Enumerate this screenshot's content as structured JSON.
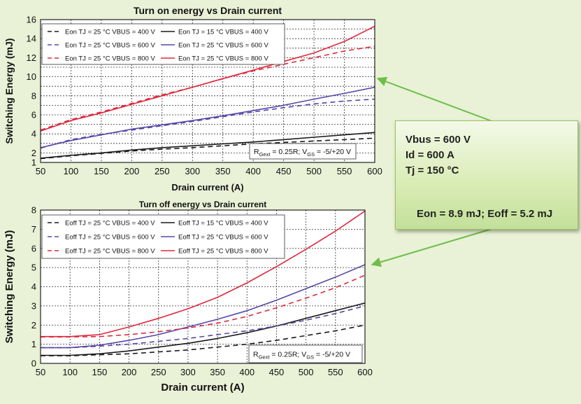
{
  "colors": {
    "page_bg": "#e9f1d6",
    "plot_bg": "#ffffff",
    "black": "#1a1a1a",
    "purple": "#5548a8",
    "red": "#e0283c",
    "arrow": "#6cbf48"
  },
  "chart_data": [
    {
      "type": "line",
      "title": "Turn on energy vs Drain current",
      "xlabel": "Drain current (A)",
      "ylabel": "Switching Energy (mJ)",
      "xlim": [
        50,
        600
      ],
      "ylim": [
        1,
        16
      ],
      "xticks": [
        50,
        100,
        150,
        200,
        250,
        300,
        350,
        400,
        450,
        500,
        550,
        600
      ],
      "yticks": [
        1,
        2,
        3,
        4,
        5,
        6,
        7,
        8,
        9,
        10,
        11,
        12,
        13,
        14,
        15,
        16
      ],
      "ytick_labels": [
        "1",
        "2",
        "4",
        "6",
        "8",
        "10",
        "12",
        "14",
        "16"
      ],
      "ytick_label_values": [
        1,
        2,
        4,
        6,
        8,
        10,
        12,
        14,
        16
      ],
      "grid": true,
      "legend_position": "top-left",
      "annotation": {
        "pre": "R",
        "sub1": "Gext",
        "mid": " = 0.25R; V",
        "sub2": "GS",
        "post": " = -5/+20 V"
      },
      "x": [
        50,
        100,
        150,
        200,
        250,
        300,
        350,
        400,
        450,
        500,
        550,
        600
      ],
      "series": [
        {
          "name": "Eon TJ = 25 °C VBUS = 400 V",
          "color": "black",
          "dash": true,
          "values": [
            1.4,
            1.7,
            1.95,
            2.2,
            2.4,
            2.55,
            2.75,
            2.95,
            3.1,
            3.25,
            3.4,
            3.55
          ]
        },
        {
          "name": "Eon TJ = 15 °C VBUS = 400 V",
          "color": "black",
          "dash": false,
          "values": [
            1.45,
            1.75,
            2.0,
            2.3,
            2.55,
            2.75,
            2.95,
            3.15,
            3.4,
            3.65,
            3.9,
            4.15
          ]
        },
        {
          "name": "Eon TJ = 25 °C VBUS = 600 V",
          "color": "purple",
          "dash": true,
          "values": [
            2.5,
            3.4,
            3.95,
            4.4,
            4.85,
            5.3,
            5.8,
            6.3,
            6.75,
            7.15,
            7.45,
            7.65
          ]
        },
        {
          "name": "Eon TJ = 25 °C VBUS = 600 V",
          "color": "purple",
          "dash": false,
          "values": [
            2.55,
            3.3,
            3.9,
            4.5,
            4.95,
            5.4,
            5.9,
            6.45,
            7.0,
            7.65,
            8.25,
            8.9
          ]
        },
        {
          "name": "Eon TJ = 25 °C VBUS = 800 V",
          "color": "red",
          "dash": true,
          "values": [
            4.4,
            5.5,
            6.3,
            7.2,
            8.1,
            8.9,
            9.8,
            10.6,
            11.3,
            12.0,
            12.7,
            13.2
          ]
        },
        {
          "name": "Eon TJ = 25 °C VBUS = 800 V",
          "color": "red",
          "dash": false,
          "values": [
            4.3,
            5.4,
            6.2,
            7.1,
            8.0,
            8.9,
            9.8,
            10.7,
            11.6,
            12.5,
            13.7,
            15.3
          ]
        }
      ]
    },
    {
      "type": "line",
      "title": "Turn off energy vs Drain current",
      "xlabel": "Drain current (A)",
      "ylabel": "Switching Energy (mJ)",
      "xlim": [
        50,
        600
      ],
      "ylim": [
        0,
        8
      ],
      "xticks": [
        50,
        100,
        150,
        200,
        250,
        300,
        350,
        400,
        450,
        500,
        550,
        600
      ],
      "yticks": [
        0,
        1,
        2,
        3,
        4,
        5,
        6,
        7,
        8
      ],
      "ytick_labels": [
        "0",
        "1",
        "2",
        "3",
        "4",
        "5",
        "6",
        "7",
        "8"
      ],
      "ytick_label_values": [
        0,
        1,
        2,
        3,
        4,
        5,
        6,
        7,
        8
      ],
      "grid": true,
      "legend_position": "top-left",
      "annotation": {
        "pre": "R",
        "sub1": "Gext",
        "mid": " = 0.25R; V",
        "sub2": "GS",
        "post": " = -5/+20 V"
      },
      "x": [
        50,
        100,
        150,
        200,
        250,
        300,
        350,
        400,
        450,
        500,
        550,
        600
      ],
      "series": [
        {
          "name": "Eoff TJ = 25 °C VBUS = 400 V",
          "color": "black",
          "dash": true,
          "values": [
            0.4,
            0.4,
            0.45,
            0.5,
            0.6,
            0.7,
            0.85,
            1.0,
            1.2,
            1.45,
            1.7,
            2.0
          ]
        },
        {
          "name": "Eoff TJ = 15 °C VBUS = 400 V",
          "color": "black",
          "dash": false,
          "values": [
            0.42,
            0.42,
            0.5,
            0.65,
            0.85,
            1.05,
            1.3,
            1.6,
            1.95,
            2.35,
            2.75,
            3.15
          ]
        },
        {
          "name": "Eoff TJ = 25 °C VBUS = 600 V",
          "color": "purple",
          "dash": true,
          "values": [
            0.82,
            0.82,
            0.9,
            1.0,
            1.15,
            1.3,
            1.5,
            1.7,
            1.95,
            2.25,
            2.6,
            3.0
          ]
        },
        {
          "name": "Eoff TJ = 25 °C VBUS = 600 V",
          "color": "purple",
          "dash": false,
          "values": [
            0.82,
            0.82,
            0.95,
            1.2,
            1.5,
            1.9,
            2.3,
            2.75,
            3.3,
            3.9,
            4.5,
            5.15
          ]
        },
        {
          "name": "Eoff TJ = 25 °C VBUS = 800 V",
          "color": "red",
          "dash": true,
          "values": [
            1.38,
            1.38,
            1.4,
            1.5,
            1.65,
            1.85,
            2.1,
            2.45,
            2.9,
            3.4,
            3.95,
            4.6
          ]
        },
        {
          "name": "Eoff TJ = 25 °C VBUS = 800 V",
          "color": "red",
          "dash": false,
          "values": [
            1.4,
            1.4,
            1.5,
            1.9,
            2.35,
            2.85,
            3.45,
            4.2,
            5.05,
            5.95,
            6.9,
            7.95
          ]
        }
      ]
    }
  ],
  "callout": {
    "line1": "Vbus = 600 V",
    "line2": "Id = 600 A",
    "line3": "Tj = 150 °C",
    "result": "Eon = 8.9 mJ; Eoff = 5.2 mJ"
  }
}
